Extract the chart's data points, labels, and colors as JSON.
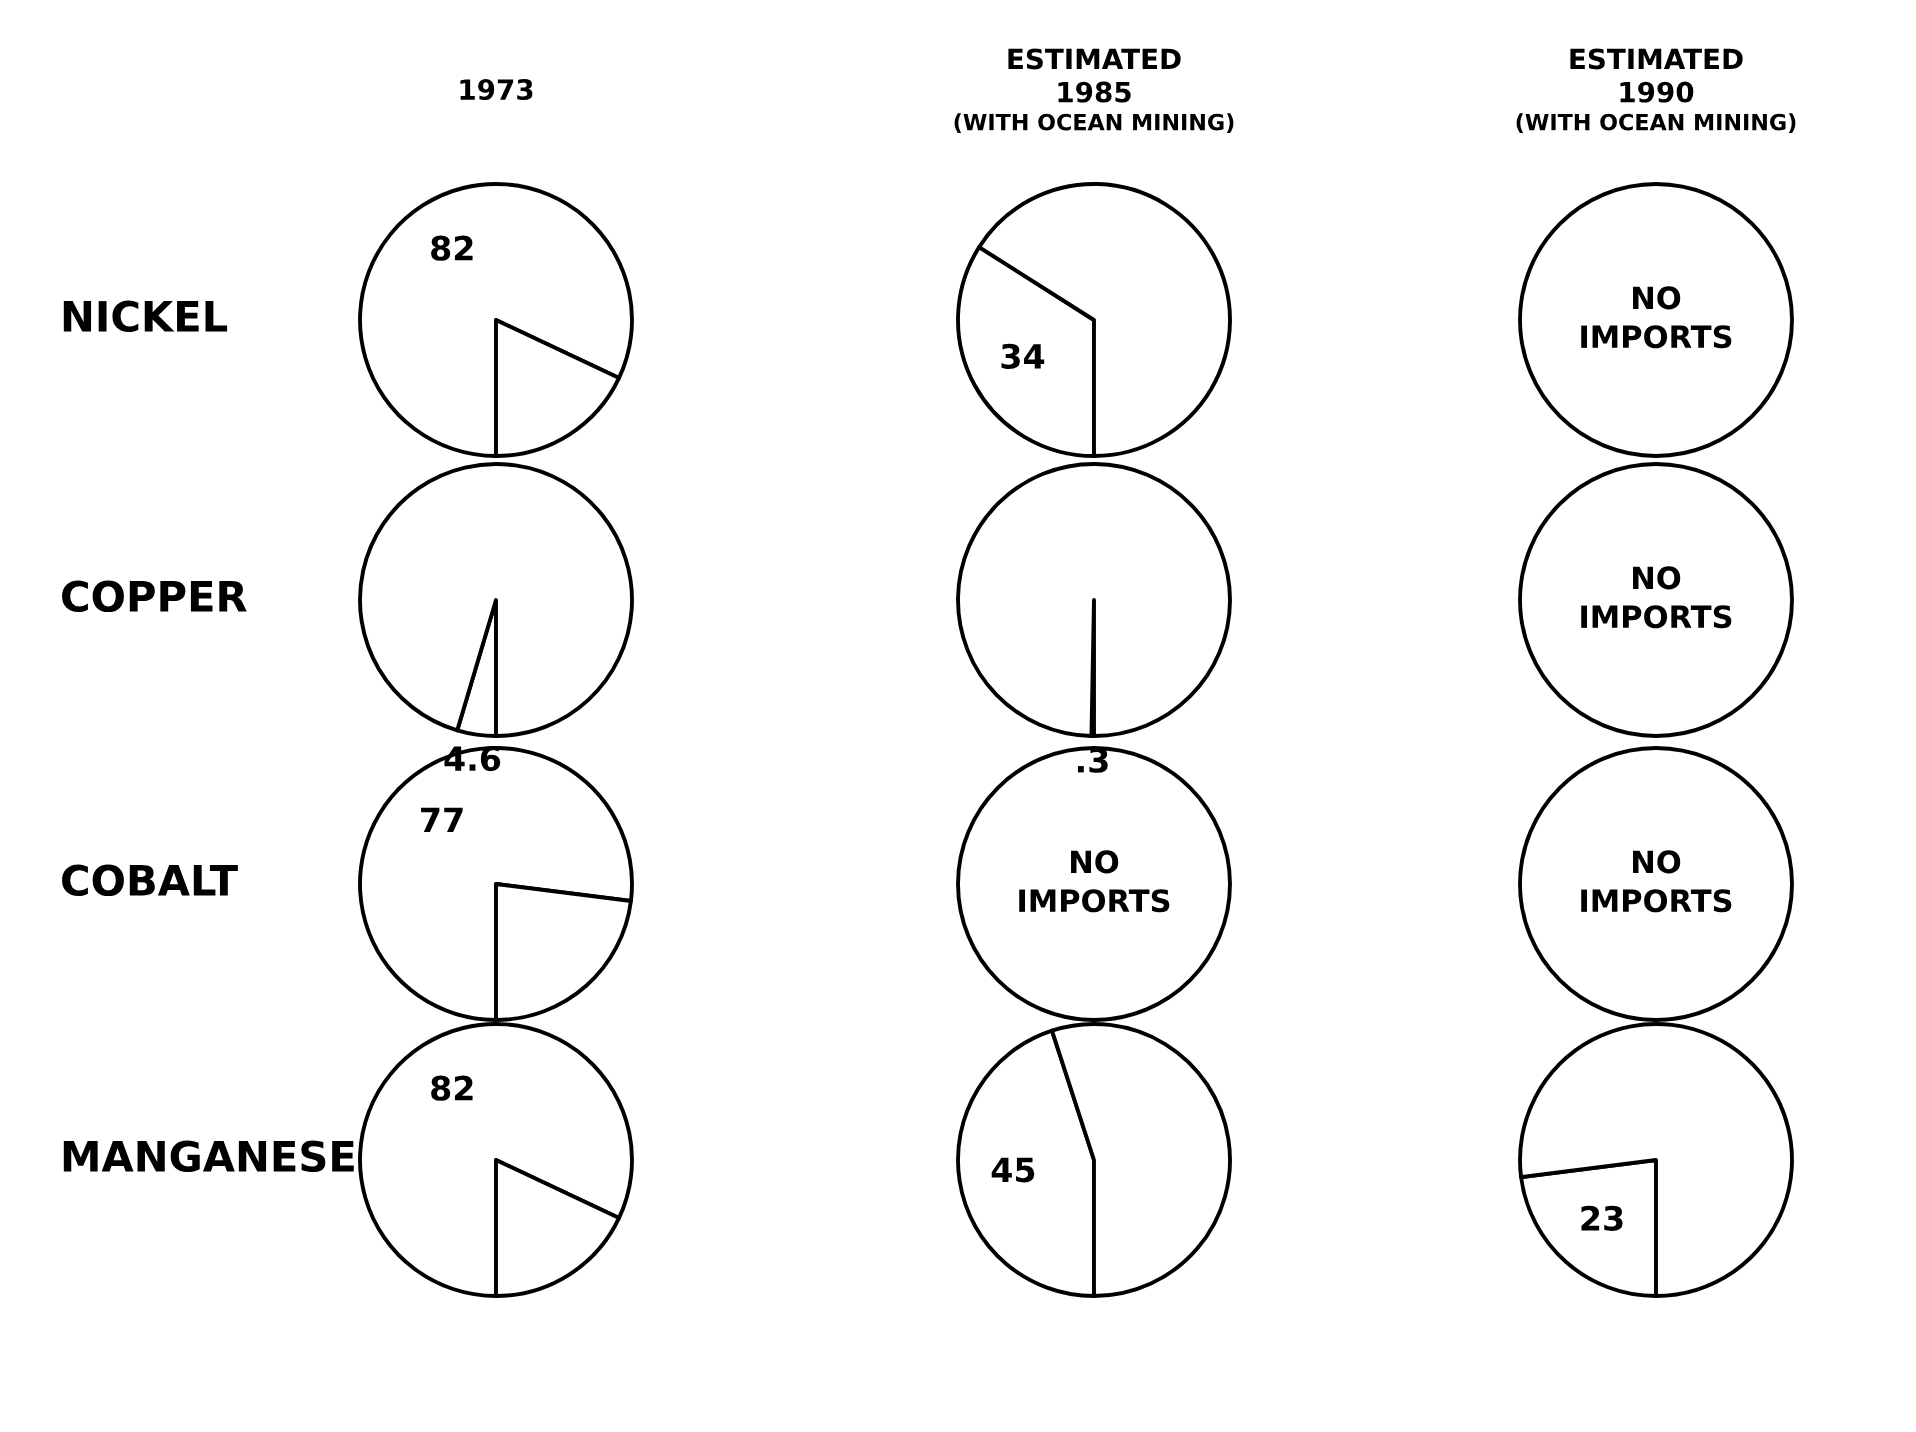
{
  "chart_data": [
    {
      "type": "pie",
      "title": "1973",
      "ylabel": "NICKEL",
      "categories": [
        null,
        null
      ],
      "values": [
        82,
        18
      ],
      "colors": [
        "#ffffff",
        "#ffffff"
      ],
      "value_labels": [
        "82",
        null
      ]
    },
    {
      "type": "pie",
      "title": "ESTIMATED 1985",
      "subtitle": "(WITH OCEAN MINING)",
      "categories": [
        null,
        null
      ],
      "values": [
        34,
        66
      ],
      "colors": [
        "#ffffff",
        "#ffffff"
      ],
      "value_labels": [
        "34",
        null
      ]
    },
    {
      "type": "pie",
      "title": "ESTIMATED 1990",
      "subtitle": "(WITH OCEAN MINING)",
      "categories": [
        null,
        null
      ],
      "values": [
        0,
        100
      ],
      "colors": [
        "#ffffff",
        "#ffffff"
      ],
      "annotations": [
        "NO IMPORTS"
      ]
    },
    {
      "type": "pie",
      "ylabel": "COPPER",
      "categories": [
        null,
        null
      ],
      "values": [
        4.6,
        95.4
      ],
      "colors": [
        "#ffffff",
        "#ffffff"
      ],
      "value_labels": [
        "4.6",
        null
      ]
    },
    {
      "type": "pie",
      "categories": [
        null,
        null
      ],
      "values": [
        0.3,
        99.7
      ],
      "colors": [
        "#ffffff",
        "#ffffff"
      ],
      "value_labels": [
        ".3",
        null
      ]
    },
    {
      "type": "pie",
      "categories": [
        null,
        null
      ],
      "values": [
        0,
        100
      ],
      "colors": [
        "#ffffff",
        "#ffffff"
      ],
      "annotations": [
        "NO IMPORTS"
      ]
    },
    {
      "type": "pie",
      "ylabel": "COBALT",
      "categories": [
        null,
        null
      ],
      "values": [
        77,
        23
      ],
      "colors": [
        "#ffffff",
        "#ffffff"
      ],
      "value_labels": [
        "77",
        null
      ]
    },
    {
      "type": "pie",
      "categories": [
        null,
        null
      ],
      "values": [
        0,
        100
      ],
      "colors": [
        "#ffffff",
        "#ffffff"
      ],
      "annotations": [
        "NO IMPORTS"
      ]
    },
    {
      "type": "pie",
      "categories": [
        null,
        null
      ],
      "values": [
        0,
        100
      ],
      "colors": [
        "#ffffff",
        "#ffffff"
      ],
      "annotations": [
        "NO IMPORTS"
      ]
    },
    {
      "type": "pie",
      "ylabel": "MANGANESE",
      "categories": [
        null,
        null
      ],
      "values": [
        82,
        18
      ],
      "colors": [
        "#ffffff",
        "#ffffff"
      ],
      "value_labels": [
        "82",
        null
      ]
    },
    {
      "type": "pie",
      "categories": [
        null,
        null
      ],
      "values": [
        45,
        55
      ],
      "colors": [
        "#ffffff",
        "#ffffff"
      ],
      "value_labels": [
        "45",
        null
      ]
    },
    {
      "type": "pie",
      "categories": [
        null,
        null
      ],
      "values": [
        23,
        77
      ],
      "colors": [
        "#ffffff",
        "#ffffff"
      ],
      "value_labels": [
        "23",
        null
      ]
    }
  ]
}
